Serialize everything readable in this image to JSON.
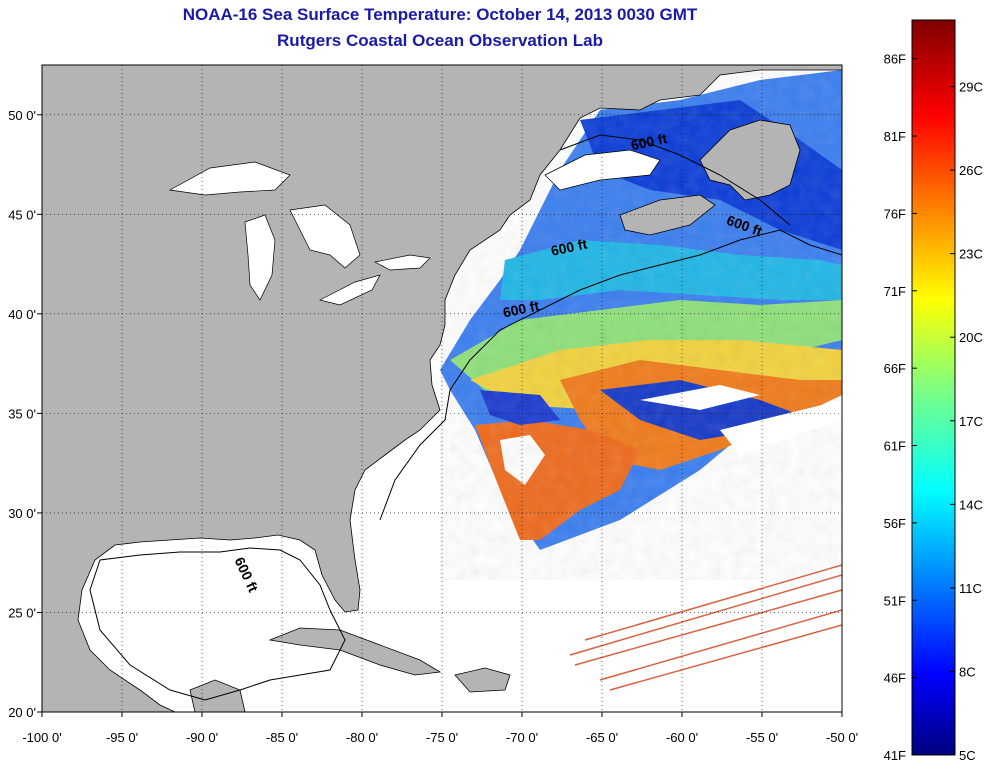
{
  "title": "NOAA-16 Sea Surface Temperature:  October 14, 2013 0030 GMT",
  "subtitle": "Rutgers Coastal Ocean Observation Lab",
  "map": {
    "lon_range": [
      -100,
      -50
    ],
    "lat_range": [
      20,
      52.5
    ],
    "x_ticks": [
      {
        "value": -100,
        "label": "-100 0'"
      },
      {
        "value": -95,
        "label": "-95 0'"
      },
      {
        "value": -90,
        "label": "-90 0'"
      },
      {
        "value": -85,
        "label": "-85 0'"
      },
      {
        "value": -80,
        "label": "-80 0'"
      },
      {
        "value": -75,
        "label": "-75 0'"
      },
      {
        "value": -70,
        "label": "-70 0'"
      },
      {
        "value": -65,
        "label": "-65 0'"
      },
      {
        "value": -60,
        "label": "-60 0'"
      },
      {
        "value": -55,
        "label": "-55 0'"
      },
      {
        "value": -50,
        "label": "-50 0'"
      }
    ],
    "y_ticks": [
      {
        "value": 50,
        "label": "50 0'"
      },
      {
        "value": 45,
        "label": "45 0'"
      },
      {
        "value": 40,
        "label": "40 0'"
      },
      {
        "value": 35,
        "label": "35 0'"
      },
      {
        "value": 30,
        "label": "30 0'"
      },
      {
        "value": 25,
        "label": "25 0'"
      },
      {
        "value": 20,
        "label": "20 0'"
      }
    ],
    "grid": "dotted",
    "land_color": "#b4b4b4",
    "contour_label": "600 ft",
    "contour_labels": [
      {
        "text": "600 ft",
        "lon": -62.0,
        "lat": 48.4
      },
      {
        "text": "600 ft",
        "lon": -56.2,
        "lat": 44.2
      },
      {
        "text": "600 ft",
        "lon": -67.0,
        "lat": 43.1
      },
      {
        "text": "600 ft",
        "lon": -70.0,
        "lat": 40.0
      },
      {
        "text": "600 ft",
        "lon": -87.5,
        "lat": 26.8
      }
    ]
  },
  "colorbar": {
    "min_f": 41,
    "max_f": 88.5,
    "fahrenheit_labels": [
      {
        "value": 86,
        "label": "86F"
      },
      {
        "value": 81,
        "label": "81F"
      },
      {
        "value": 76,
        "label": "76F"
      },
      {
        "value": 71,
        "label": "71F"
      },
      {
        "value": 66,
        "label": "66F"
      },
      {
        "value": 61,
        "label": "61F"
      },
      {
        "value": 56,
        "label": "56F"
      },
      {
        "value": 51,
        "label": "51F"
      },
      {
        "value": 46,
        "label": "46F"
      },
      {
        "value": 41,
        "label": "41F"
      }
    ],
    "celsius_labels": [
      {
        "value": 29,
        "label": "29C"
      },
      {
        "value": 26,
        "label": "26C"
      },
      {
        "value": 23,
        "label": "23C"
      },
      {
        "value": 20,
        "label": "20C"
      },
      {
        "value": 17,
        "label": "17C"
      },
      {
        "value": 14,
        "label": "14C"
      },
      {
        "value": 11,
        "label": "11C"
      },
      {
        "value": 8,
        "label": "8C"
      },
      {
        "value": 5,
        "label": "5C"
      }
    ],
    "colormap": "jet"
  }
}
